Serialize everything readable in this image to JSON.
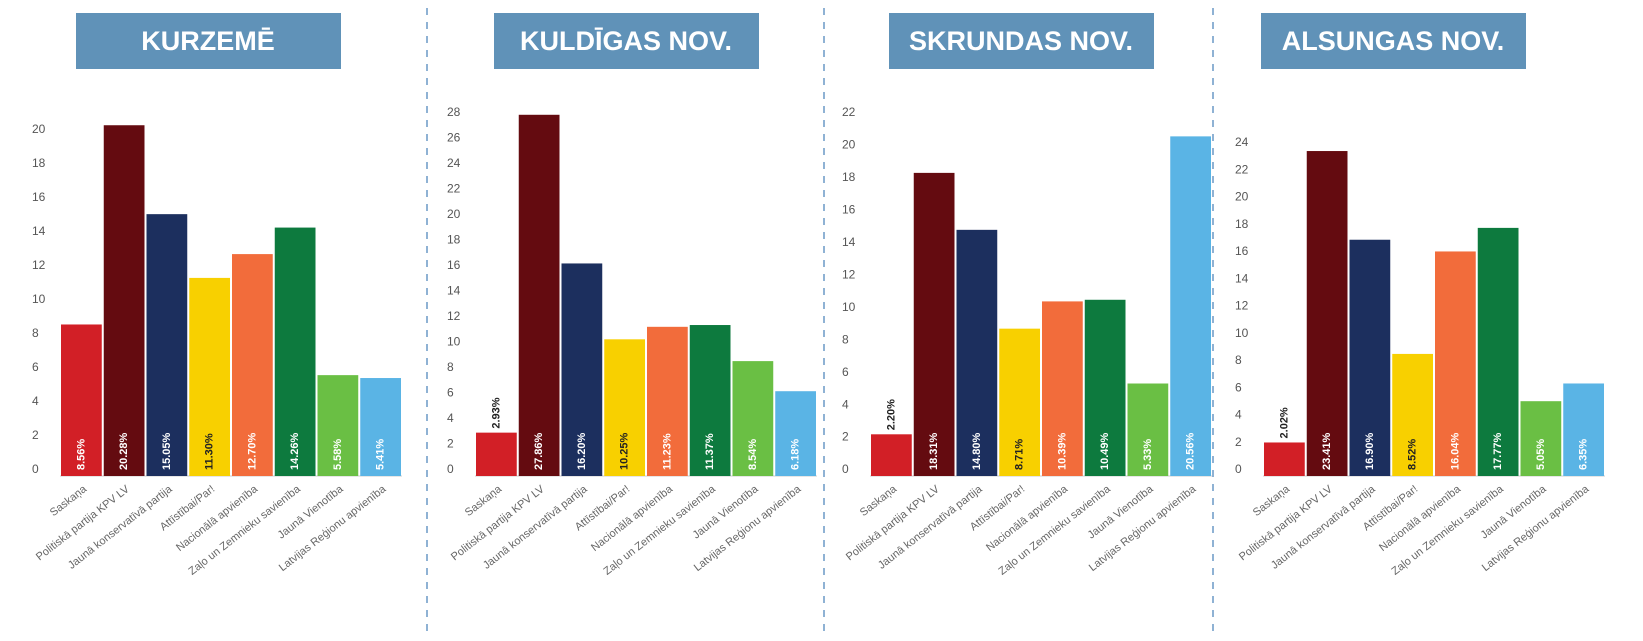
{
  "chart_data": [
    {
      "type": "bar",
      "title": "KURZEMĒ",
      "categories": [
        "Saskaņa",
        "Politiskā partija KPV LV",
        "Jaunā konservatīvā partija",
        "Attīstībai/Par!",
        "Nacionālā apvienība",
        "Zaļo un Zemnieku savienība",
        "Jaunā Vienotība",
        "Latvijas Reģionu apvienība"
      ],
      "values": [
        8.56,
        20.28,
        15.05,
        11.3,
        12.7,
        14.26,
        5.58,
        5.41
      ],
      "value_labels": [
        "8.56%",
        "20.28%",
        "15.05%",
        "11.30%",
        "12.70%",
        "14.26%",
        "5.58%",
        "5.41%"
      ],
      "colors": [
        "#d21f26",
        "#640b10",
        "#1c2f5e",
        "#f8d000",
        "#f26c3b",
        "#0d7a3e",
        "#6abf44",
        "#5ab4e5"
      ],
      "ylim": [
        0,
        20
      ],
      "yticks": [
        0,
        2,
        4,
        6,
        8,
        10,
        12,
        14,
        16,
        18,
        20
      ]
    },
    {
      "type": "bar",
      "title": "KULDĪGAS NOV.",
      "categories": [
        "Saskaņa",
        "Politiskā partija KPV LV",
        "Jaunā konservatīvā partija",
        "Attīstībai/Par!",
        "Nacionālā apvienība",
        "Zaļo un Zemnieku savienība",
        "Jaunā Vienotība",
        "Latvijas Reģionu apvienība"
      ],
      "values": [
        2.93,
        27.86,
        16.2,
        10.25,
        11.23,
        11.37,
        8.54,
        6.18
      ],
      "value_labels": [
        "2.93%",
        "27.86%",
        "16.20%",
        "10.25%",
        "11.23%",
        "11.37%",
        "8.54%",
        "6.18%"
      ],
      "colors": [
        "#d21f26",
        "#640b10",
        "#1c2f5e",
        "#f8d000",
        "#f26c3b",
        "#0d7a3e",
        "#6abf44",
        "#5ab4e5"
      ],
      "ylim": [
        0,
        28
      ],
      "yticks": [
        0,
        2,
        4,
        6,
        8,
        10,
        12,
        14,
        16,
        18,
        20,
        22,
        24,
        26,
        28
      ]
    },
    {
      "type": "bar",
      "title": "SKRUNDAS NOV.",
      "categories": [
        "Saskaņa",
        "Politiskā partija KPV LV",
        "Jaunā konservatīvā partija",
        "Attīstībai/Par!",
        "Nacionālā apvienība",
        "Zaļo un Zemnieku savienība",
        "Jaunā Vienotība",
        "Latvijas Reģionu apvienība"
      ],
      "values": [
        2.2,
        18.31,
        14.8,
        8.71,
        10.39,
        10.49,
        5.33,
        20.56
      ],
      "value_labels": [
        "2.20%",
        "18.31%",
        "14.80%",
        "8.71%",
        "10.39%",
        "10.49%",
        "5.33%",
        "20.56%"
      ],
      "colors": [
        "#d21f26",
        "#640b10",
        "#1c2f5e",
        "#f8d000",
        "#f26c3b",
        "#0d7a3e",
        "#6abf44",
        "#5ab4e5"
      ],
      "ylim": [
        0,
        22
      ],
      "yticks": [
        0,
        2,
        4,
        6,
        8,
        10,
        12,
        14,
        16,
        18,
        20,
        22
      ]
    },
    {
      "type": "bar",
      "title": "ALSUNGAS NOV.",
      "categories": [
        "Saskaņa",
        "Politiskā partija KPV LV",
        "Jaunā konservatīvā partija",
        "Attīstībai/Par!",
        "Nacionālā apvienība",
        "Zaļo un Zemnieku savienība",
        "Jaunā Vienotība",
        "Latvijas Reģionu apvienība"
      ],
      "values": [
        2.02,
        23.41,
        16.9,
        8.52,
        16.04,
        17.77,
        5.05,
        6.35
      ],
      "value_labels": [
        "2.02%",
        "23.41%",
        "16.90%",
        "8.52%",
        "16.04%",
        "17.77%",
        "5.05%",
        "6.35%"
      ],
      "colors": [
        "#d21f26",
        "#640b10",
        "#1c2f5e",
        "#f8d000",
        "#f26c3b",
        "#0d7a3e",
        "#6abf44",
        "#5ab4e5"
      ],
      "ylim": [
        0,
        24
      ],
      "yticks": [
        0,
        2,
        4,
        6,
        8,
        10,
        12,
        14,
        16,
        18,
        20,
        22,
        24
      ]
    }
  ]
}
